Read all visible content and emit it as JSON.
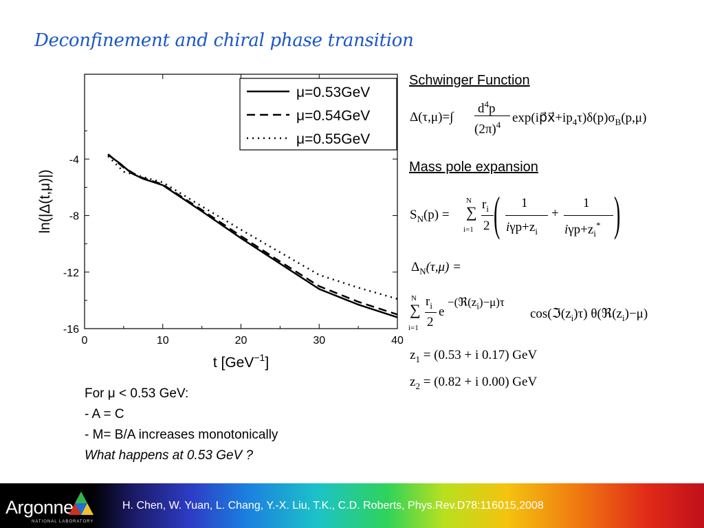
{
  "slide": {
    "title": "Deconfinement and chiral phase transition"
  },
  "chart_data": {
    "type": "line",
    "xlabel": "t [GeV",
    "xlabel_sup": "−1",
    "xlabel_end": "]",
    "ylabel": "ln(|Δ(t,μ)|)",
    "xlim": [
      0,
      40
    ],
    "ylim": [
      -16,
      2
    ],
    "xticks": [
      0,
      10,
      20,
      30,
      40
    ],
    "yticks": [
      -4,
      -8,
      -12,
      -16
    ],
    "grid": false,
    "legend_position": "top-right",
    "series": [
      {
        "name": "μ=0.53GeV",
        "style": "solid",
        "x": [
          3,
          4.5,
          6,
          7.5,
          10,
          15,
          20,
          25,
          30,
          35,
          40
        ],
        "y": [
          -3.7,
          -4.3,
          -5.0,
          -5.4,
          -5.85,
          -7.7,
          -9.6,
          -11.4,
          -13.2,
          -14.3,
          -15.2
        ]
      },
      {
        "name": "μ=0.54GeV",
        "style": "dashed",
        "x": [
          3,
          5,
          7,
          10,
          15,
          20,
          25,
          30,
          35,
          40
        ],
        "y": [
          -3.65,
          -4.6,
          -5.25,
          -5.8,
          -7.6,
          -9.45,
          -11.25,
          -13.0,
          -14.1,
          -15.0
        ]
      },
      {
        "name": "μ=0.55GeV",
        "style": "dotted",
        "x": [
          3,
          5,
          10,
          15,
          20,
          25,
          30,
          35,
          40
        ],
        "y": [
          -3.8,
          -4.9,
          -5.65,
          -7.35,
          -9.0,
          -10.6,
          -12.2,
          -13.1,
          -13.9
        ]
      }
    ]
  },
  "schwinger": {
    "heading": "Schwinger Function",
    "lhs": "Δ(τ,μ)=∫",
    "num": "d",
    "num_sup": "4",
    "num_end": "p",
    "den": "(2π)",
    "den_sup": "4",
    "rhs": "exp(ip⃗x⃗+ip",
    "rhs_sub": "4",
    "rhs2": "τ)δ(p)σ",
    "rhs2_sub": "B",
    "rhs3": "(p,μ)"
  },
  "mass_pole": {
    "heading": "Mass pole expansion",
    "sn": "S",
    "sn_sub": "N",
    "sn_arg": "(p) =",
    "sum_top": "N",
    "sum_bottom": "i=1",
    "ri": "r",
    "ri_sub": "i",
    "two": "2",
    "one": "1",
    "den1": "γp+z",
    "den1_sub": "i",
    "den2": "γp+z",
    "den2_sub": "i",
    "den2_sup": "*",
    "imag": "i",
    "plus": "+",
    "delta_n": "Δ",
    "delta_n_sub": "N",
    "delta_n_arg": "(τ,μ) =",
    "exp_term": "e",
    "exp_sup": "−(ℜ(z",
    "exp_sup_sub": "i",
    "exp_sup_end": ")−μ)τ",
    "cos_term": "cos(ℑ(z",
    "cos_sub": "i",
    "cos_end": ")τ) θ(ℜ(z",
    "theta_sub": "i",
    "theta_end": ")−μ)",
    "z1": "z",
    "z1_sub": "1",
    "z1_val": "= (0.53 + i 0.17) GeV",
    "z2": "z",
    "z2_sub": "2",
    "z2_val": "= (0.82 + i 0.00) GeV"
  },
  "notes": {
    "line1": "For μ < 0.53 GeV:",
    "line2": "- A = C",
    "line3": "- M= B/A increases monotonically",
    "line4": "What happens at 0.53 GeV ?"
  },
  "footer": {
    "logo": "Argonne",
    "logo_sub": "NATIONAL LABORATORY",
    "citation": "H. Chen, W. Yuan, L. Chang, Y.-X. Liu, T.K., C.D. Roberts, Phys.Rev.D78:116015,2008",
    "colors": {
      "logo_blue": "#1f6fd0",
      "logo_green": "#35b34a",
      "logo_yellow": "#f2c12e",
      "logo_red": "#d0311e"
    }
  }
}
